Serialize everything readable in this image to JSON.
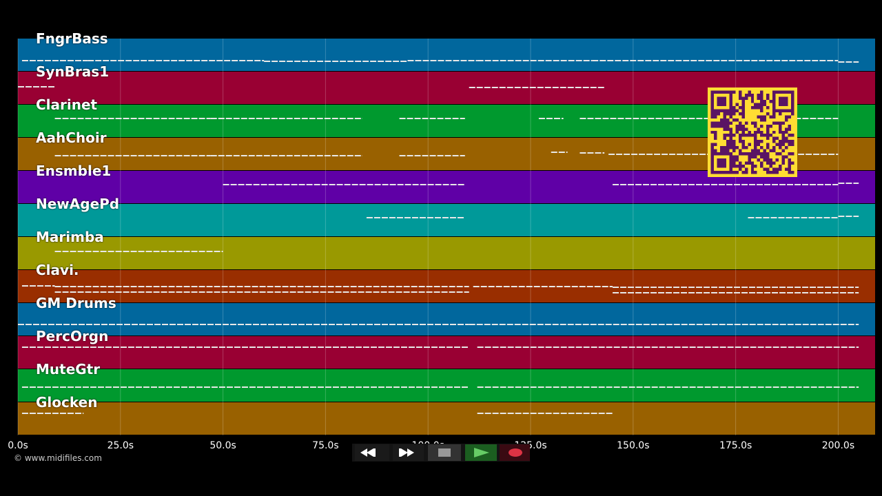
{
  "tracks": [
    {
      "name": "FngrBass",
      "color": "#01679d",
      "notes": [
        [
          1,
          17,
          88
        ],
        [
          17,
          60,
          88
        ],
        [
          60,
          95,
          89
        ],
        [
          95,
          112,
          88
        ],
        [
          112,
          140,
          88
        ],
        [
          140,
          200,
          88
        ],
        [
          200,
          205,
          90
        ]
      ]
    },
    {
      "name": "SynBras1",
      "color": "#990033",
      "notes": [
        [
          0,
          9,
          126
        ],
        [
          110,
          143,
          127
        ]
      ]
    },
    {
      "name": "Clarinet",
      "color": "#00992e",
      "notes": [
        [
          9,
          47,
          172
        ],
        [
          47,
          84,
          172
        ],
        [
          93,
          109,
          172
        ],
        [
          127,
          133,
          172
        ],
        [
          137,
          158,
          172
        ],
        [
          158,
          200,
          172
        ]
      ]
    },
    {
      "name": "AahChoir",
      "color": "#996100",
      "notes": [
        [
          9,
          47,
          226
        ],
        [
          47,
          84,
          226
        ],
        [
          93,
          109,
          226
        ],
        [
          130,
          134,
          221
        ],
        [
          137,
          143,
          222
        ],
        [
          144,
          200,
          224
        ]
      ]
    },
    {
      "name": "Ensmble1",
      "color": "#5f00a6",
      "notes": [
        [
          50,
          109,
          268
        ],
        [
          145,
          200,
          268
        ],
        [
          200,
          205,
          266
        ]
      ]
    },
    {
      "name": "NewAgePd",
      "color": "#009999",
      "notes": [
        [
          85,
          109,
          316
        ],
        [
          178,
          200,
          316
        ],
        [
          200,
          205,
          314
        ]
      ]
    },
    {
      "name": "Marimba",
      "color": "#999900",
      "notes": [
        [
          9,
          50,
          365
        ]
      ]
    },
    {
      "name": "Clavi.",
      "color": "#992e00",
      "notes": [
        [
          1,
          9,
          415
        ],
        [
          9,
          70,
          416
        ],
        [
          70,
          110,
          416
        ],
        [
          111,
          145,
          416
        ],
        [
          145,
          205,
          417
        ],
        [
          9,
          110,
          424
        ],
        [
          145,
          205,
          425
        ]
      ]
    },
    {
      "name": "GM Drums",
      "color": "#01679d",
      "notes": [
        [
          0,
          110,
          471
        ],
        [
          110,
          205,
          471
        ]
      ]
    },
    {
      "name": "PercOrgn",
      "color": "#990033",
      "notes": [
        [
          1,
          110,
          504
        ],
        [
          112,
          205,
          504
        ]
      ]
    },
    {
      "name": "MuteGtr",
      "color": "#00992e",
      "notes": [
        [
          1,
          110,
          562
        ],
        [
          112,
          205,
          562
        ]
      ]
    },
    {
      "name": "Glocken",
      "color": "#996100",
      "notes": [
        [
          1,
          16,
          600
        ],
        [
          112,
          145,
          600
        ]
      ]
    }
  ],
  "axis": {
    "ticks": [
      "0.0s",
      "25.0s",
      "50.0s",
      "75.0s",
      "100.0s",
      "125.0s",
      "150.0s",
      "175.0s",
      "200.0s"
    ],
    "tick_values": [
      0,
      25,
      50,
      75,
      100,
      125,
      150,
      175,
      200
    ]
  },
  "copyright": "© www.midifiles.com",
  "transport": {
    "rewind": "rewind-icon",
    "fast_forward": "fast-forward-icon",
    "stop": "stop-icon",
    "play": "play-icon",
    "record": "record-icon",
    "colors": {
      "stop": "#999999",
      "play": "#66cc66",
      "record": "#dd3344"
    }
  },
  "qr": {
    "color": "#5a1464",
    "background": "#ffdd33"
  }
}
